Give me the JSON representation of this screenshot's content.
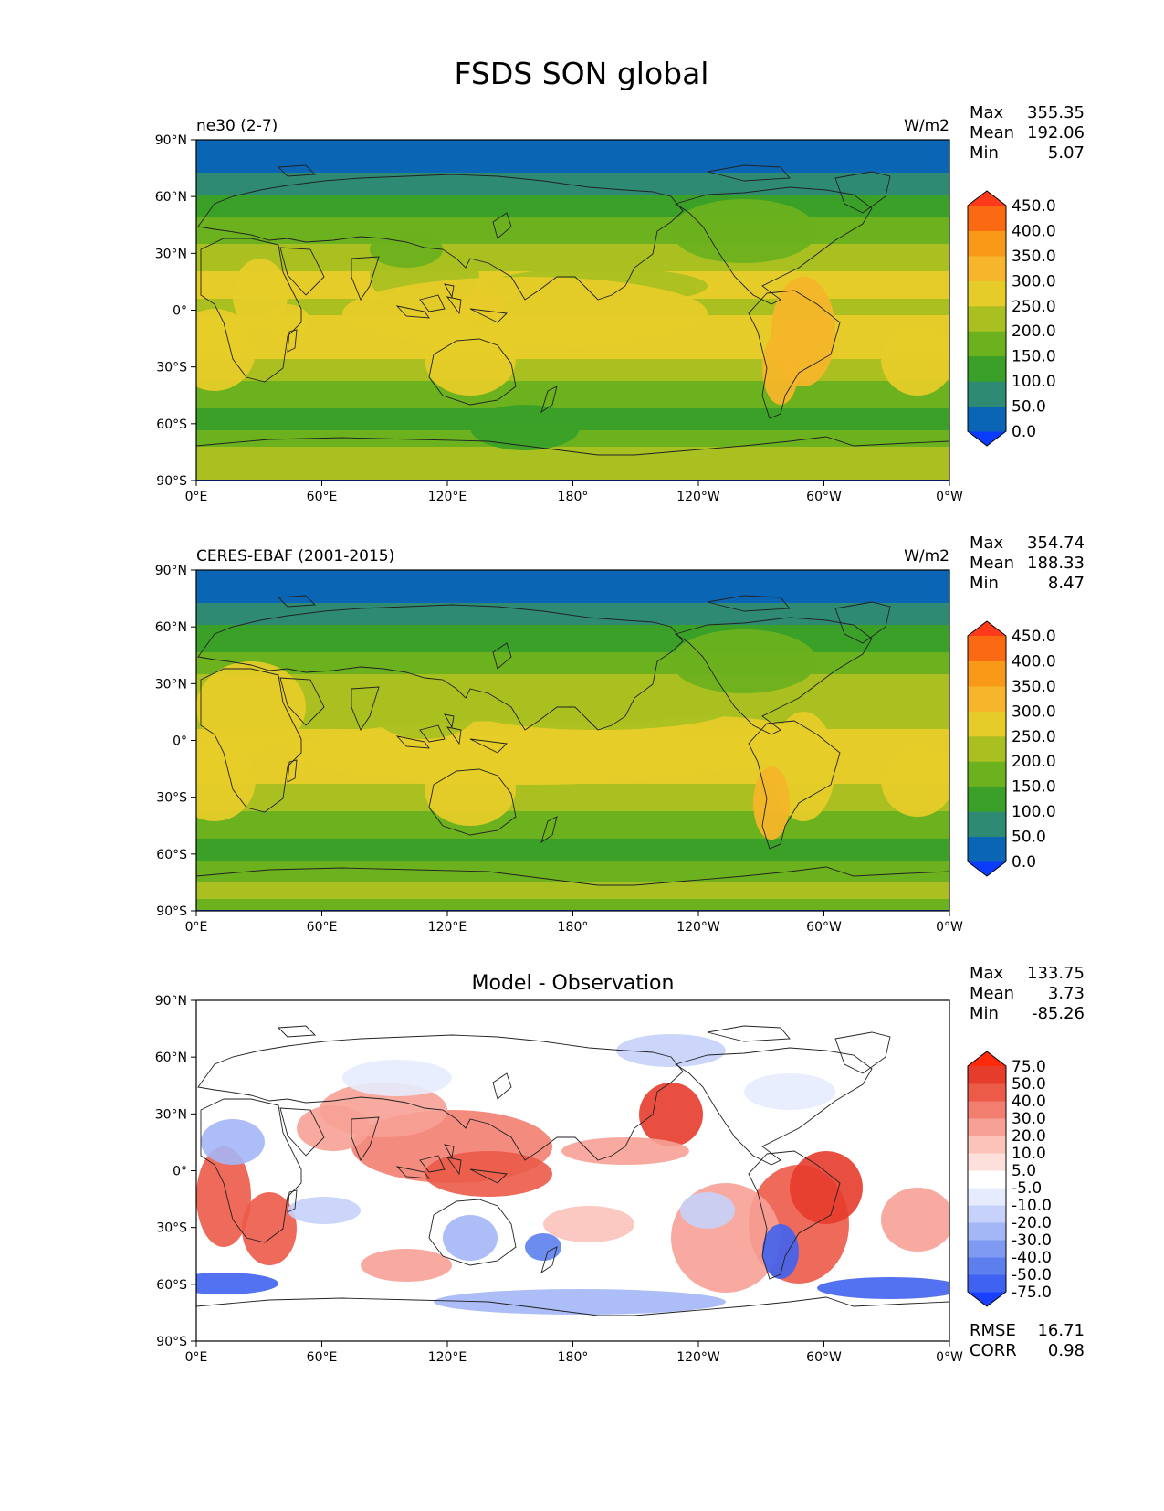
{
  "title": "FSDS SON global",
  "colors": {
    "frame": "#000000",
    "coast": "#222222",
    "background": "#ffffff"
  },
  "panels": [
    {
      "left_label": "ne30 (2-7)",
      "right_label": "W/m2",
      "center_label": "",
      "stats": [
        {
          "label": "Max",
          "value": "355.35"
        },
        {
          "label": "Mean",
          "value": "192.06"
        },
        {
          "label": "Min",
          "value": "5.07"
        }
      ],
      "footer": [],
      "colorbar": {
        "ticks": [
          "0.0",
          "50.0",
          "100.0",
          "150.0",
          "200.0",
          "250.0",
          "300.0",
          "350.0",
          "400.0",
          "450.0"
        ],
        "colors": [
          "#0a3cff",
          "#0a66b4",
          "#2e8a72",
          "#3aa028",
          "#6cb11e",
          "#aac020",
          "#e6cc28",
          "#f6b52a",
          "#f89a18",
          "#fb6a12",
          "#ff3a1a"
        ]
      }
    },
    {
      "left_label": "CERES-EBAF (2001-2015)",
      "right_label": "W/m2",
      "center_label": "",
      "stats": [
        {
          "label": "Max",
          "value": "354.74"
        },
        {
          "label": "Mean",
          "value": "188.33"
        },
        {
          "label": "Min",
          "value": "8.47"
        }
      ],
      "footer": [],
      "colorbar": {
        "ticks": [
          "0.0",
          "50.0",
          "100.0",
          "150.0",
          "200.0",
          "250.0",
          "300.0",
          "350.0",
          "400.0",
          "450.0"
        ],
        "colors": [
          "#0a3cff",
          "#0a66b4",
          "#2e8a72",
          "#3aa028",
          "#6cb11e",
          "#aac020",
          "#e6cc28",
          "#f6b52a",
          "#f89a18",
          "#fb6a12",
          "#ff3a1a"
        ]
      }
    },
    {
      "left_label": "",
      "right_label": "",
      "center_label": "Model - Observation",
      "stats": [
        {
          "label": "Max",
          "value": "133.75"
        },
        {
          "label": "Mean",
          "value": "3.73"
        },
        {
          "label": "Min",
          "value": "-85.26"
        }
      ],
      "footer": [
        {
          "label": "RMSE",
          "value": "16.71"
        },
        {
          "label": "CORR",
          "value": "0.98"
        }
      ],
      "colorbar": {
        "ticks": [
          "-75.0",
          "-50.0",
          "-40.0",
          "-30.0",
          "-20.0",
          "-10.0",
          "-5.0",
          "5.0",
          "10.0",
          "20.0",
          "30.0",
          "40.0",
          "50.0",
          "75.0"
        ],
        "colors": [
          "#1a40ff",
          "#3f63f0",
          "#5d7fee",
          "#7f9af2",
          "#a3b6f6",
          "#c6d2fa",
          "#e6ecfd",
          "#ffffff",
          "#fde0dc",
          "#fbc3ba",
          "#f7a196",
          "#f27e70",
          "#ec5a48",
          "#e53c2c",
          "#ff2a0a"
        ]
      }
    }
  ],
  "axes": {
    "y_ticks": [
      "90°N",
      "60°N",
      "30°N",
      "0°",
      "30°S",
      "60°S",
      "90°S"
    ],
    "x_ticks": [
      "0°E",
      "60°E",
      "120°E",
      "180°",
      "120°W",
      "60°W",
      "0°W"
    ]
  },
  "chart_data": [
    {
      "type": "heatmap",
      "title": "ne30 (2-7)",
      "units": "W/m2",
      "x_range": [
        0,
        360
      ],
      "y_range": [
        -90,
        90
      ],
      "levels": [
        0,
        50,
        100,
        150,
        200,
        250,
        300,
        350,
        400,
        450
      ],
      "zonal_profile": {
        "lat": [
          90,
          75,
          60,
          45,
          30,
          15,
          0,
          -15,
          -30,
          -45,
          -60,
          -75,
          -90
        ],
        "value": [
          20,
          40,
          110,
          165,
          225,
          260,
          245,
          265,
          245,
          165,
          125,
          210,
          200
        ]
      },
      "stats": {
        "max": 355.35,
        "mean": 192.06,
        "min": 5.07
      }
    },
    {
      "type": "heatmap",
      "title": "CERES-EBAF (2001-2015)",
      "units": "W/m2",
      "x_range": [
        0,
        360
      ],
      "y_range": [
        -90,
        90
      ],
      "levels": [
        0,
        50,
        100,
        150,
        200,
        250,
        300,
        350,
        400,
        450
      ],
      "zonal_profile": {
        "lat": [
          90,
          75,
          60,
          45,
          30,
          15,
          0,
          -15,
          -30,
          -45,
          -60,
          -75,
          -90
        ],
        "value": [
          20,
          40,
          100,
          160,
          215,
          240,
          255,
          265,
          240,
          170,
          130,
          205,
          195
        ]
      },
      "stats": {
        "max": 354.74,
        "mean": 188.33,
        "min": 8.47
      }
    },
    {
      "type": "heatmap",
      "title": "Model - Observation",
      "x_range": [
        0,
        360
      ],
      "y_range": [
        -90,
        90
      ],
      "levels": [
        -75,
        -50,
        -40,
        -30,
        -20,
        -10,
        -5,
        5,
        10,
        20,
        30,
        40,
        50,
        75
      ],
      "stats": {
        "max": 133.75,
        "mean": 3.73,
        "min": -85.26,
        "rmse": 16.71,
        "corr": 0.98
      }
    }
  ]
}
